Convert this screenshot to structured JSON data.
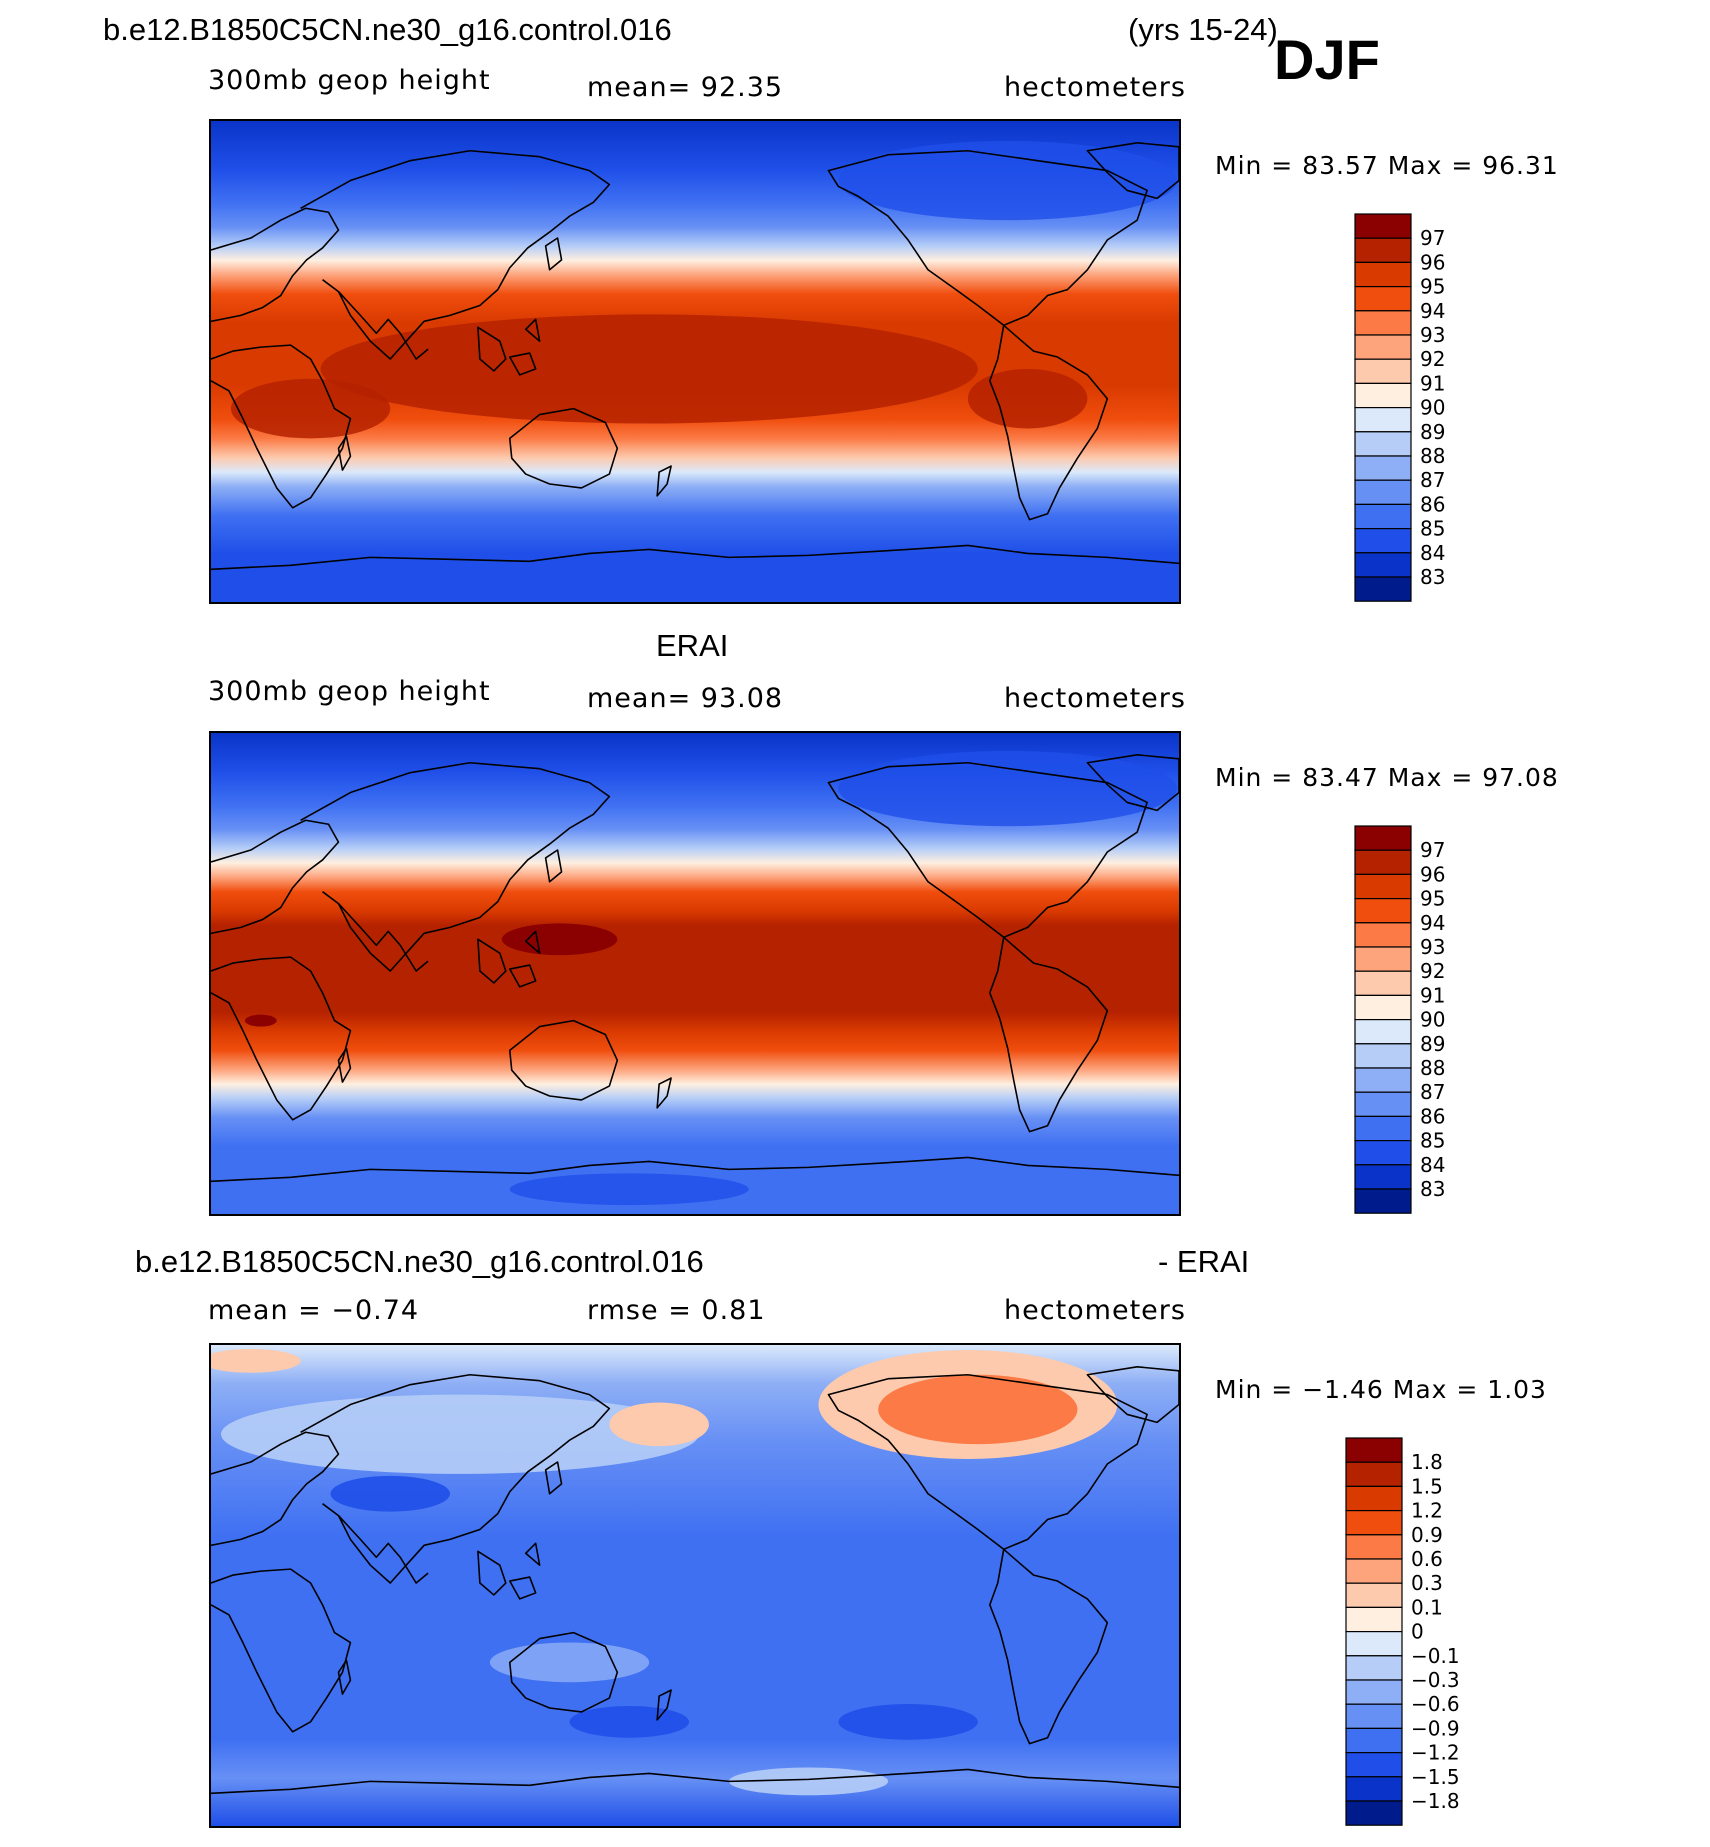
{
  "header": {
    "case_name": "b.e12.B1850C5CN.ne30_g16.control.016",
    "years": "(yrs 15-24)",
    "season": "DJF"
  },
  "panels": [
    {
      "id": "model",
      "title": "",
      "variable": "300mb geop height",
      "stat": "mean=   92.35",
      "units": "hectometers",
      "minmax": "Min =   83.57  Max =   96.31",
      "colorbar": {
        "labels": [
          "97",
          "96",
          "95",
          "94",
          "93",
          "92",
          "91",
          "90",
          "89",
          "88",
          "87",
          "86",
          "85",
          "84",
          "83"
        ],
        "colors": [
          "#8b0000",
          "#b52200",
          "#d93a00",
          "#f04e0e",
          "#fb7a45",
          "#fda47d",
          "#fdcaae",
          "#feefe0",
          "#dbe9fb",
          "#b5cdf7",
          "#8eaff5",
          "#6790f5",
          "#3f70f2",
          "#1f4fe8",
          "#0a34c9",
          "#001c8c"
        ]
      }
    },
    {
      "id": "obs",
      "title": "ERAI",
      "variable": "300mb geop height",
      "stat": "mean=   93.08",
      "units": "hectometers",
      "minmax": "Min =   83.47  Max =   97.08",
      "colorbar": {
        "labels": [
          "97",
          "96",
          "95",
          "94",
          "93",
          "92",
          "91",
          "90",
          "89",
          "88",
          "87",
          "86",
          "85",
          "84",
          "83"
        ],
        "colors": [
          "#8b0000",
          "#b52200",
          "#d93a00",
          "#f04e0e",
          "#fb7a45",
          "#fda47d",
          "#fdcaae",
          "#feefe0",
          "#dbe9fb",
          "#b5cdf7",
          "#8eaff5",
          "#6790f5",
          "#3f70f2",
          "#1f4fe8",
          "#0a34c9",
          "#001c8c"
        ]
      }
    },
    {
      "id": "diff",
      "title_left": "b.e12.B1850C5CN.ne30_g16.control.016",
      "title_right": "- ERAI",
      "stat_mean": "mean =   −0.74",
      "stat_rmse": "rmse =     0.81",
      "units": "hectometers",
      "minmax": "Min =   −1.46  Max =     1.03",
      "colorbar": {
        "labels": [
          "1.8",
          "1.5",
          "1.2",
          "0.9",
          "0.6",
          "0.3",
          "0.1",
          "0",
          "−0.1",
          "−0.3",
          "−0.6",
          "−0.9",
          "−1.2",
          "−1.5",
          "−1.8"
        ],
        "colors": [
          "#8b0000",
          "#b52200",
          "#d93a00",
          "#f04e0e",
          "#fb7a45",
          "#fda47d",
          "#fdcaae",
          "#feefe0",
          "#dbe9fb",
          "#b5cdf7",
          "#8eaff5",
          "#6790f5",
          "#3f70f2",
          "#1f4fe8",
          "#0a34c9",
          "#001c8c"
        ]
      }
    }
  ]
}
